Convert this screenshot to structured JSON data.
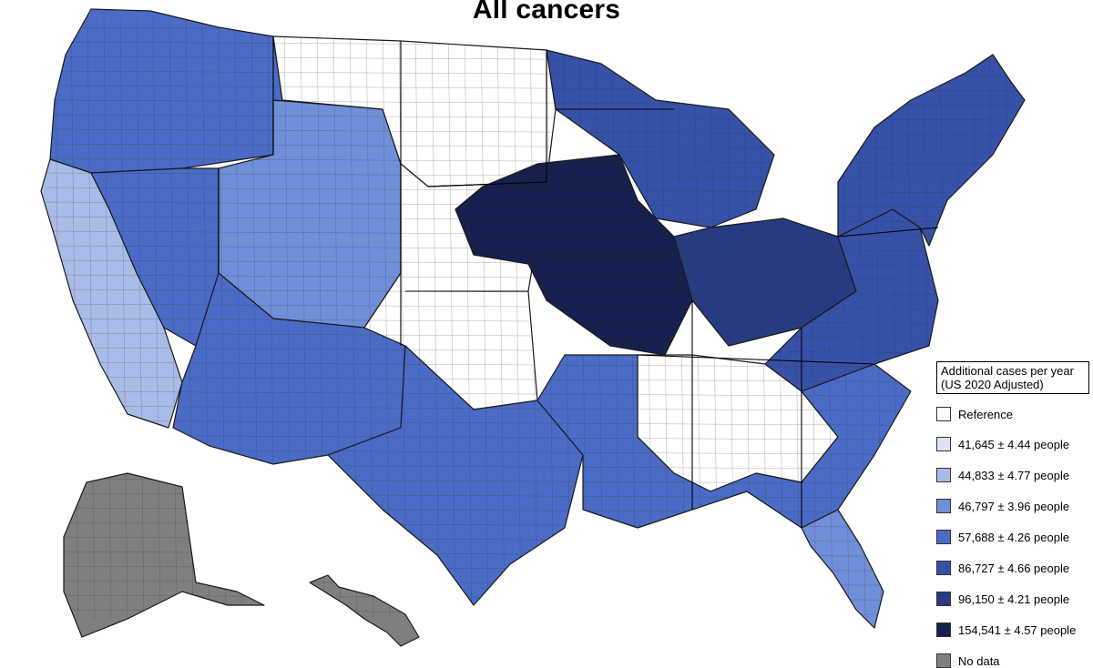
{
  "title": "All cancers",
  "legend": {
    "title_line1": "Additional cases per year",
    "title_line2": "(US 2020 Adjusted)",
    "items": [
      {
        "label": "Reference",
        "color": "#ffffff"
      },
      {
        "label": "41,645 ± 4.44 people",
        "color": "#dce3f5"
      },
      {
        "label": "44,833 ± 4.77 people",
        "color": "#a9bce8"
      },
      {
        "label": "46,797 ± 3.96 people",
        "color": "#6f8fd9"
      },
      {
        "label": "57,688 ± 4.26 people",
        "color": "#4a6cc6"
      },
      {
        "label": "86,727 ± 4.66 people",
        "color": "#3652a8"
      },
      {
        "label": "96,150 ± 4.21 people",
        "color": "#263b82"
      },
      {
        "label": "154,541 ± 4.57 people",
        "color": "#15204e"
      },
      {
        "label": "No data",
        "color": "#7f7f7f"
      }
    ]
  },
  "regions": [
    {
      "name": "pacific-northwest",
      "level": "57,688 ± 4.26 people"
    },
    {
      "name": "california-coast",
      "level": "44,833 ± 4.77 people"
    },
    {
      "name": "great-basin",
      "level": "57,688 ± 4.26 people"
    },
    {
      "name": "rockies",
      "level": "46,797 ± 3.96 people"
    },
    {
      "name": "southwest",
      "level": "57,688 ± 4.26 people"
    },
    {
      "name": "northern-plains",
      "level": "Reference"
    },
    {
      "name": "central-plains",
      "level": "Reference"
    },
    {
      "name": "texas",
      "level": "57,688 ± 4.26 people"
    },
    {
      "name": "upper-midwest",
      "level": "154,541 ± 4.57 people"
    },
    {
      "name": "great-lakes",
      "level": "86,727 ± 4.66 people"
    },
    {
      "name": "ohio-valley",
      "level": "96,150 ± 4.21 people"
    },
    {
      "name": "deep-south",
      "level": "Reference"
    },
    {
      "name": "southeast",
      "level": "57,688 ± 4.26 people"
    },
    {
      "name": "florida",
      "level": "46,797 ± 3.96 people"
    },
    {
      "name": "mid-atlantic",
      "level": "86,727 ± 4.66 people"
    },
    {
      "name": "new-england",
      "level": "86,727 ± 4.66 people"
    },
    {
      "name": "alaska",
      "level": "No data"
    },
    {
      "name": "hawaii",
      "level": "No data"
    }
  ]
}
